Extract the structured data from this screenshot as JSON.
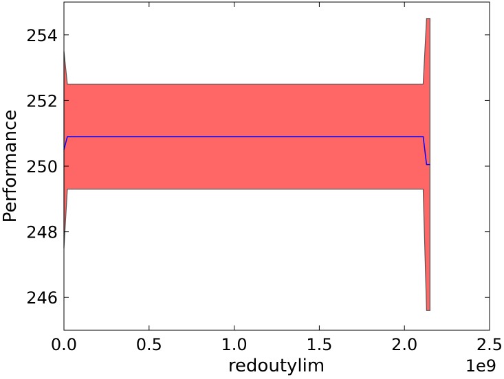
{
  "chart_data": {
    "type": "area",
    "title": "",
    "xlabel": "redoutylim",
    "ylabel": "Performance",
    "x_offset_text": "1e9",
    "xlim": [
      0,
      2.5
    ],
    "ylim": [
      245,
      255
    ],
    "x_ticks": [
      0.0,
      0.5,
      1.0,
      1.5,
      2.0,
      2.5
    ],
    "x_tick_labels": [
      "0.0",
      "0.5",
      "1.0",
      "1.5",
      "2.0",
      "2.5"
    ],
    "y_ticks": [
      246,
      248,
      250,
      252,
      254
    ],
    "y_tick_labels": [
      "246",
      "248",
      "250",
      "252",
      "254"
    ],
    "grid": false,
    "x_units": "1e9",
    "series": [
      {
        "color": "#0000ff",
        "x": [
          0.0,
          0.02,
          2.11,
          2.13,
          2.15
        ],
        "values": [
          250.5,
          250.9,
          250.9,
          250.05,
          250.05
        ]
      }
    ],
    "band": {
      "color": "#ff6666",
      "edge_color": "#555555",
      "x": [
        0.0,
        0.02,
        2.11,
        2.13,
        2.15
      ],
      "upper": [
        253.5,
        252.5,
        252.5,
        254.5,
        254.5
      ],
      "lower": [
        247.5,
        249.3,
        249.3,
        245.6,
        245.6
      ]
    }
  }
}
